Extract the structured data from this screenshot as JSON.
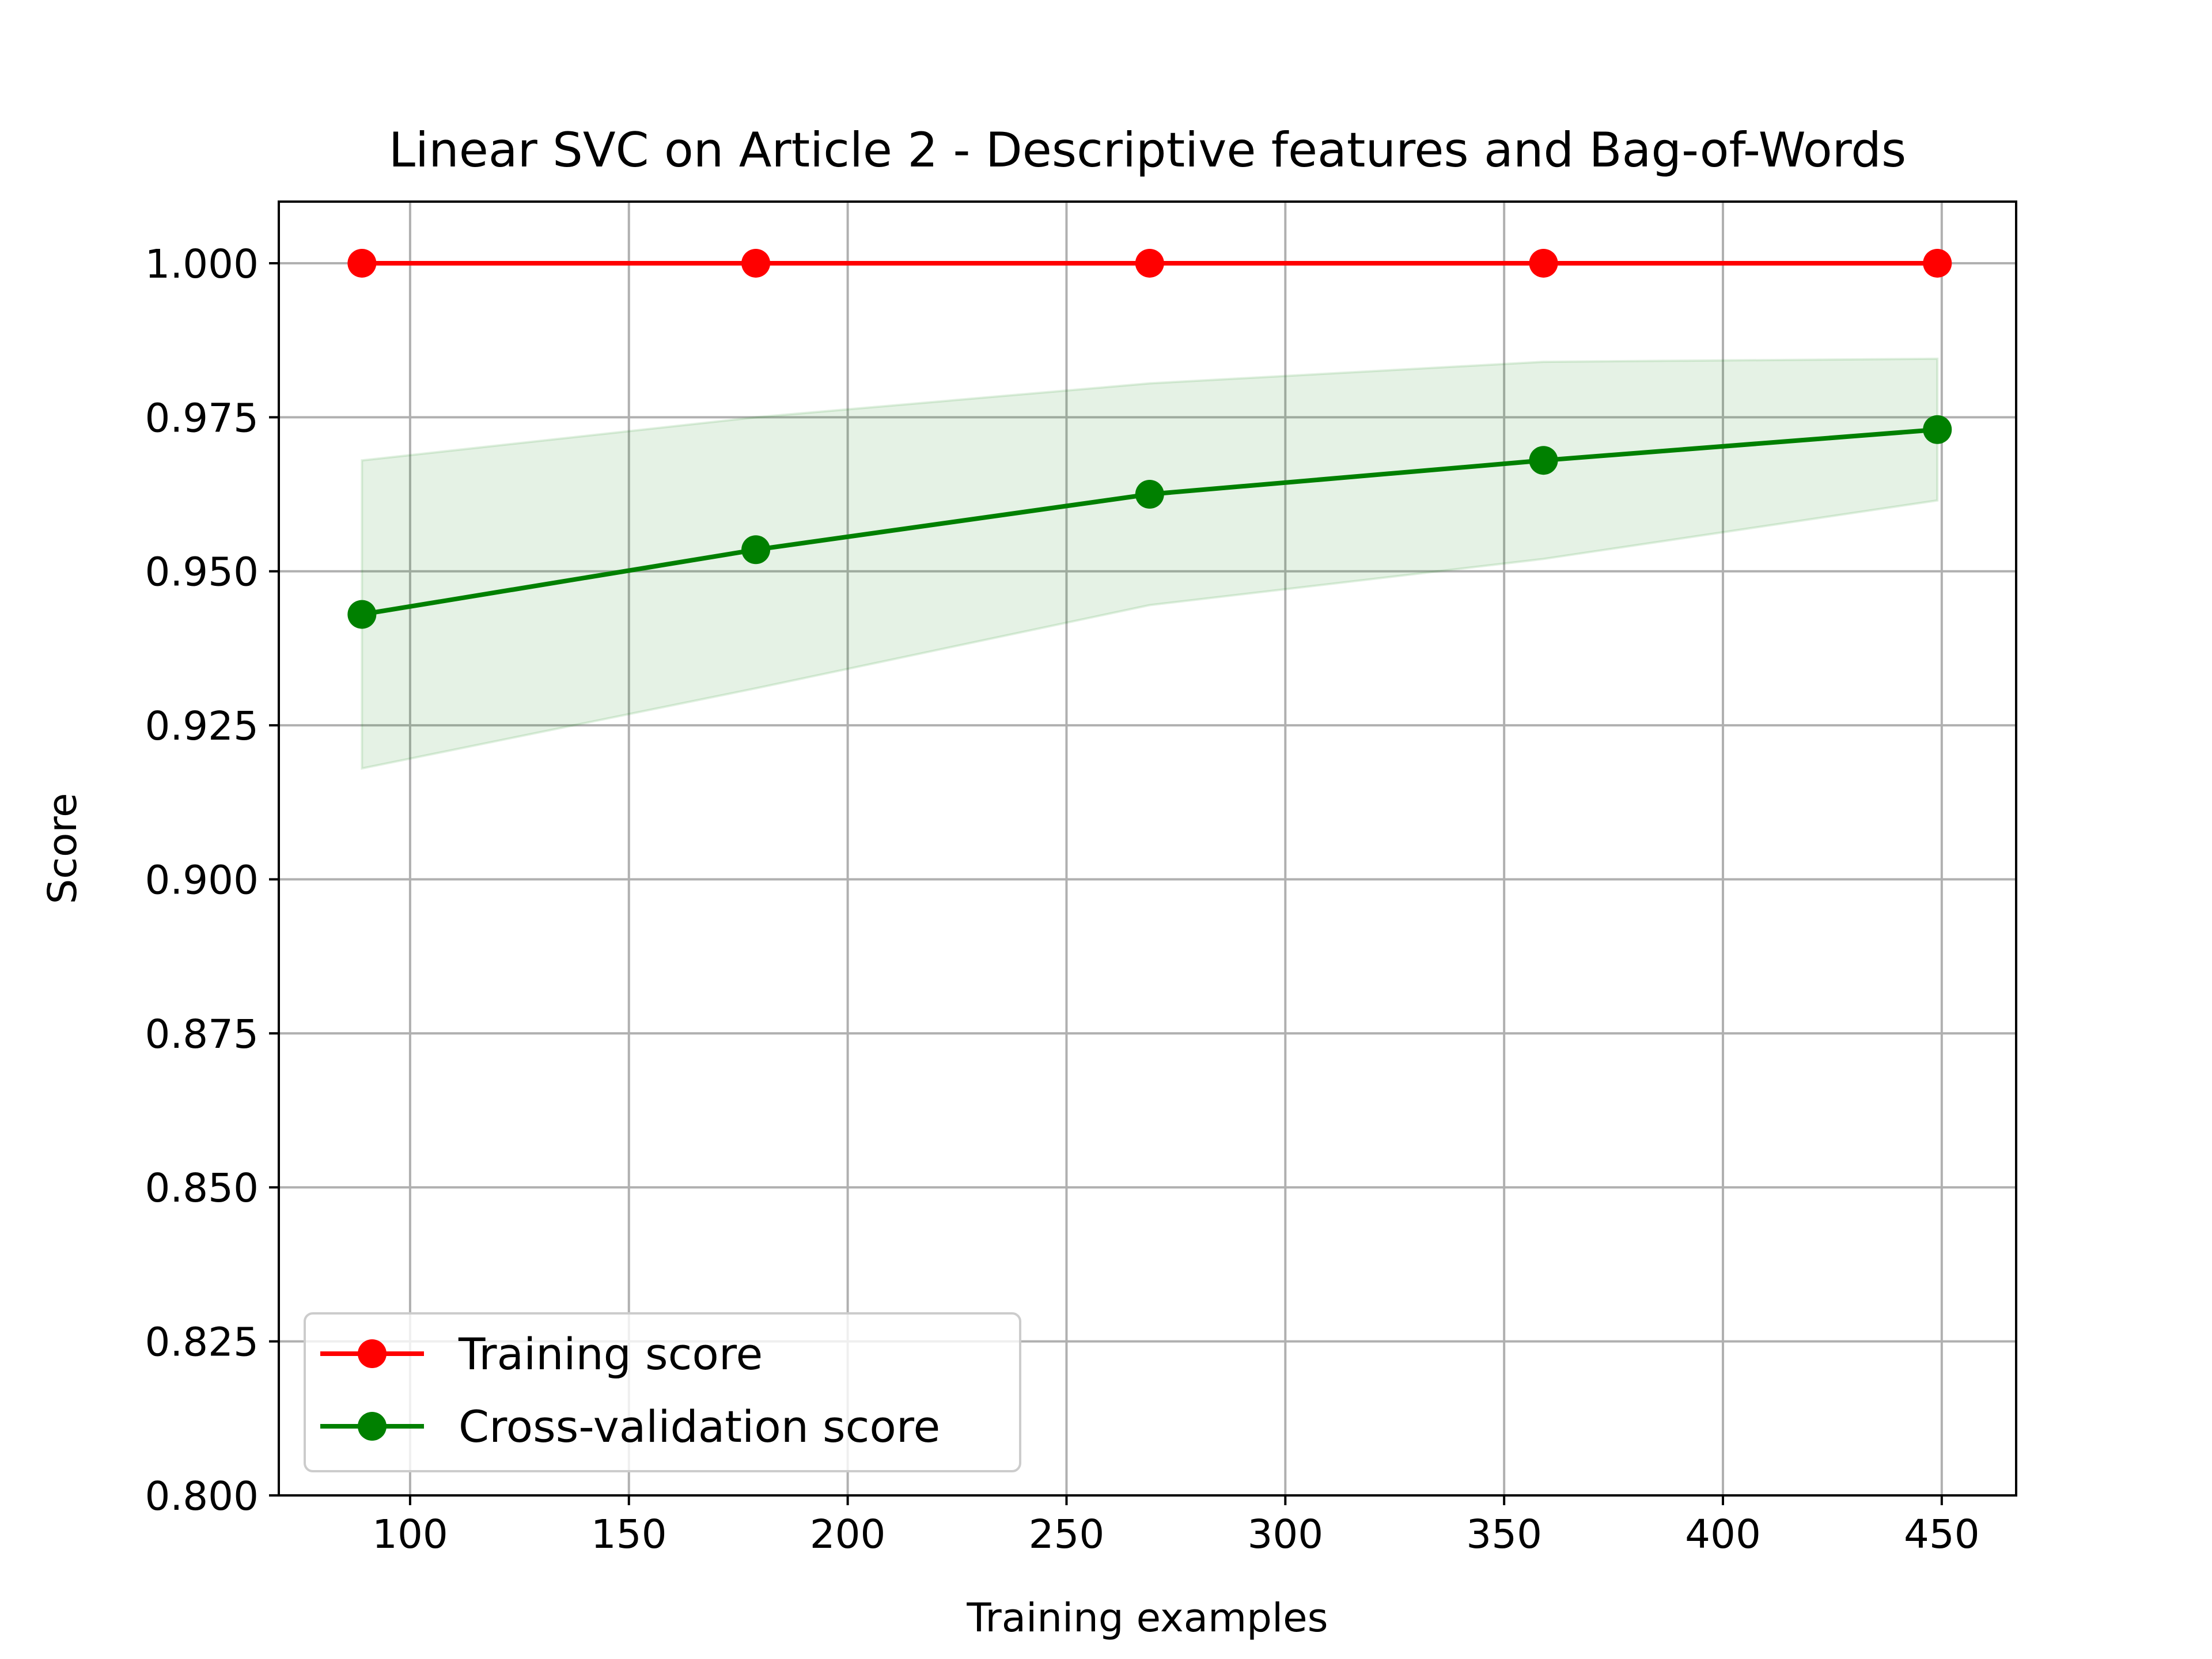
{
  "chart_data": {
    "type": "line",
    "title": "Linear SVC on Article 2 - Descriptive features and Bag-of-Words",
    "xlabel": "Training examples",
    "ylabel": "Score",
    "xlim": [
      70,
      467
    ],
    "ylim": [
      0.8,
      1.01
    ],
    "x_ticks": [
      100,
      150,
      200,
      250,
      300,
      350,
      400,
      450
    ],
    "x_tick_labels": [
      "100",
      "150",
      "200",
      "250",
      "300",
      "350",
      "400",
      "450"
    ],
    "y_ticks": [
      0.8,
      0.825,
      0.85,
      0.875,
      0.9,
      0.925,
      0.95,
      0.975,
      1.0
    ],
    "y_tick_labels": [
      "0.800",
      "0.825",
      "0.850",
      "0.875",
      "0.900",
      "0.925",
      "0.950",
      "0.975",
      "1.000"
    ],
    "grid": true,
    "legend_position": "lower-left",
    "x": [
      89,
      179,
      269,
      359,
      449
    ],
    "series": [
      {
        "name": "Training score",
        "color": "#ff0000",
        "values": [
          1.0,
          1.0,
          1.0,
          1.0,
          1.0
        ],
        "band_low": [
          1.0,
          1.0,
          1.0,
          1.0,
          1.0
        ],
        "band_high": [
          1.0,
          1.0,
          1.0,
          1.0,
          1.0
        ]
      },
      {
        "name": "Cross-validation score",
        "color": "#008000",
        "band_color": "#008000",
        "values": [
          0.943,
          0.9535,
          0.9625,
          0.968,
          0.973
        ],
        "band_low": [
          0.918,
          0.931,
          0.9445,
          0.952,
          0.9615
        ],
        "band_high": [
          0.968,
          0.975,
          0.9805,
          0.984,
          0.9845
        ]
      }
    ]
  }
}
